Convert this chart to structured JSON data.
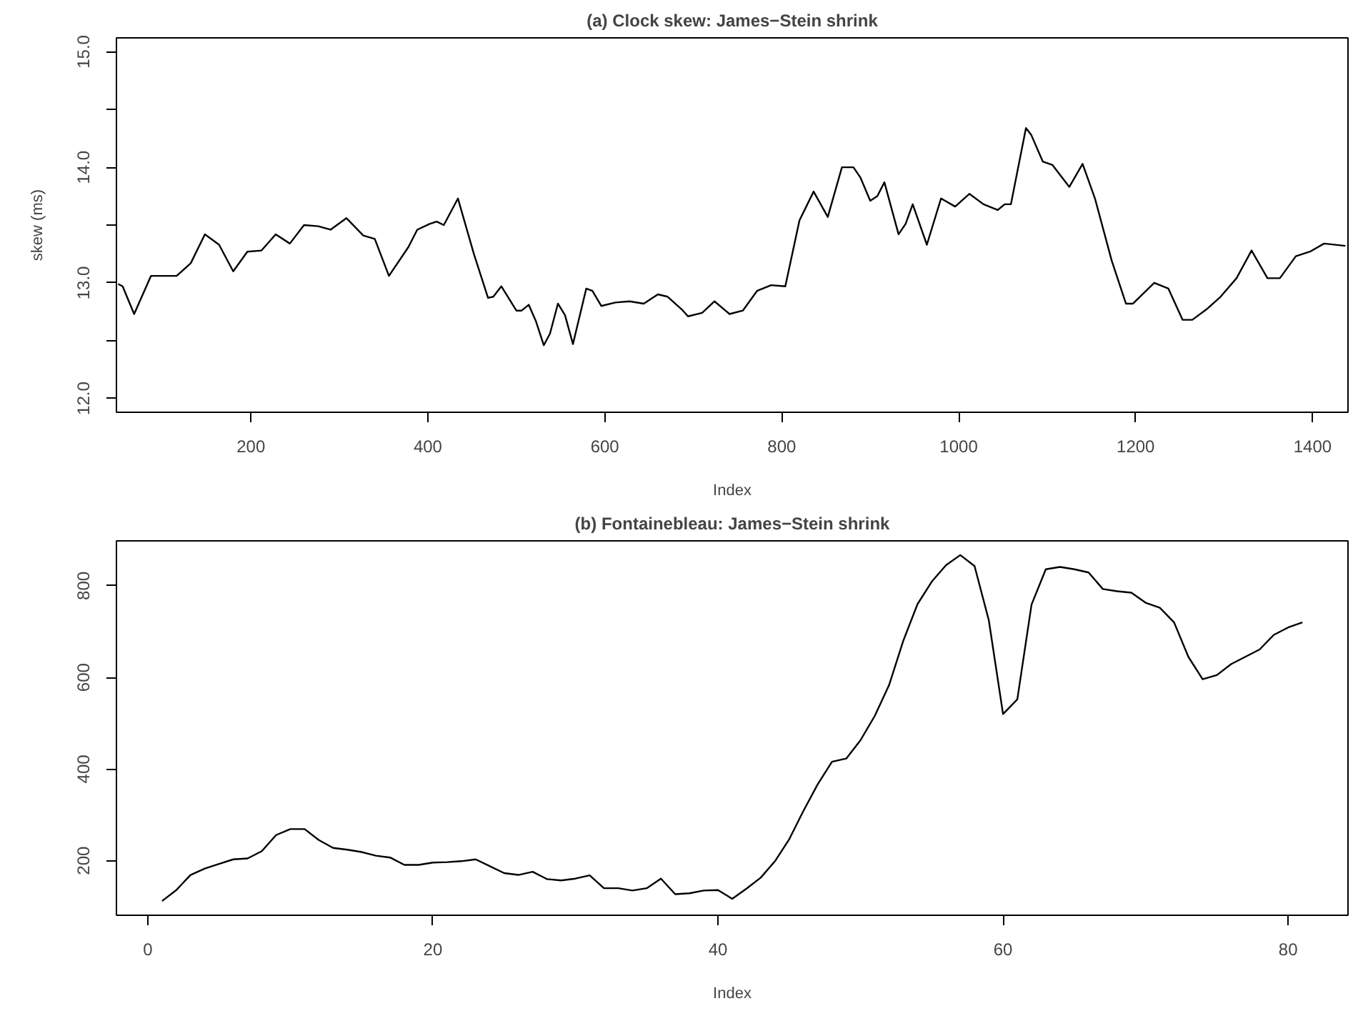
{
  "chart_data": [
    {
      "type": "line",
      "title": "(a) Clock skew: James−Stein shrink",
      "xlabel": "Index",
      "ylabel": "skew (ms)",
      "line_style": "solid",
      "grid": false,
      "xlim": [
        48,
        1440
      ],
      "ylim": [
        11.88,
        15.12
      ],
      "xticks": [
        200,
        400,
        600,
        800,
        1000,
        1200,
        1400
      ],
      "yticks": [
        {
          "value": 12.0,
          "label": "12.0"
        },
        {
          "value": 12.5,
          "label": null
        },
        {
          "value": 13.0,
          "label": "13.0"
        },
        {
          "value": 13.5,
          "label": null
        },
        {
          "value": 14.0,
          "label": "14.0"
        },
        {
          "value": 14.5,
          "label": null
        },
        {
          "value": 15.0,
          "label": "15.0"
        }
      ],
      "series": [
        {
          "color": "#000000",
          "x": [
            50,
            55,
            68,
            87,
            98,
            116,
            132,
            148,
            164,
            180,
            196,
            212,
            228,
            244,
            260,
            276,
            290,
            308,
            327,
            340,
            356,
            378,
            388,
            402,
            410,
            418,
            434,
            452,
            468,
            474,
            483,
            500,
            506,
            514,
            522,
            531,
            538,
            547,
            555,
            564,
            579,
            586,
            596,
            612,
            628,
            644,
            660,
            671,
            687,
            694,
            710,
            724,
            741,
            756,
            772,
            788,
            804,
            820,
            836,
            852,
            868,
            881,
            889,
            900,
            908,
            916,
            932,
            940,
            948,
            964,
            980,
            996,
            1012,
            1028,
            1044,
            1052,
            1059,
            1076,
            1082,
            1095,
            1106,
            1125,
            1140,
            1154,
            1173,
            1189,
            1197,
            1221,
            1237,
            1253,
            1264,
            1280,
            1296,
            1314,
            1331,
            1349,
            1363,
            1381,
            1397,
            1413,
            1437
          ],
          "values": [
            12.99,
            12.97,
            12.73,
            13.06,
            13.06,
            13.06,
            13.17,
            13.42,
            13.33,
            13.1,
            13.27,
            13.28,
            13.42,
            13.34,
            13.5,
            13.49,
            13.46,
            13.56,
            13.41,
            13.38,
            13.06,
            13.31,
            13.46,
            13.51,
            13.53,
            13.5,
            13.73,
            13.25,
            12.87,
            12.88,
            12.97,
            12.76,
            12.76,
            12.81,
            12.67,
            12.46,
            12.56,
            12.82,
            12.72,
            12.47,
            12.95,
            12.93,
            12.8,
            12.83,
            12.84,
            12.82,
            12.9,
            12.88,
            12.77,
            12.71,
            12.74,
            12.84,
            12.73,
            12.76,
            12.93,
            12.98,
            12.97,
            13.54,
            13.79,
            13.57,
            14.0,
            14.0,
            13.91,
            13.71,
            13.75,
            13.87,
            13.42,
            13.51,
            13.68,
            13.33,
            13.73,
            13.66,
            13.77,
            13.68,
            13.63,
            13.68,
            13.68,
            14.34,
            14.28,
            14.05,
            14.02,
            13.83,
            14.03,
            13.73,
            13.19,
            12.82,
            12.82,
            13.0,
            12.95,
            12.68,
            12.68,
            12.77,
            12.88,
            13.04,
            13.28,
            13.04,
            13.04,
            13.23,
            13.27,
            13.34,
            13.32
          ]
        }
      ]
    },
    {
      "type": "line",
      "title": "(b) Fontainebleau: James−Stein shrink",
      "xlabel": "Index",
      "line_style": "solid",
      "grid": false,
      "xlim": [
        -2.2,
        84.2
      ],
      "ylim": [
        81,
        898
      ],
      "xticks": [
        0,
        20,
        40,
        60,
        80
      ],
      "yticks": [
        200,
        400,
        600,
        800
      ],
      "series": [
        {
          "color": "#000000",
          "x": [
            1,
            2,
            3,
            4,
            5,
            6,
            7,
            8,
            9,
            10,
            11,
            12,
            13,
            14,
            15,
            16,
            17,
            18,
            19,
            20,
            21,
            22,
            23,
            24,
            25,
            26,
            27,
            28,
            29,
            30,
            31,
            32,
            33,
            34,
            35,
            36,
            37,
            38,
            39,
            40,
            41,
            42,
            43,
            44,
            45,
            46,
            47,
            48,
            49,
            50,
            51,
            52,
            53,
            54,
            55,
            56,
            57,
            58,
            59,
            60,
            61,
            62,
            63,
            64,
            65,
            66,
            67,
            68,
            69,
            70,
            71,
            72,
            73,
            74,
            75,
            76,
            77,
            78,
            79,
            80,
            81
          ],
          "values": [
            112,
            136,
            169,
            183,
            193,
            203,
            205,
            221,
            256,
            269,
            269,
            245,
            228,
            224,
            219,
            211,
            207,
            191,
            191,
            196,
            197,
            199,
            203,
            188,
            173,
            169,
            176,
            160,
            157,
            161,
            168,
            140,
            140,
            135,
            140,
            161,
            127,
            129,
            135,
            136,
            117,
            139,
            163,
            199,
            247,
            309,
            367,
            416,
            423,
            463,
            516,
            583,
            680,
            760,
            809,
            845,
            867,
            843,
            725,
            520,
            552,
            759,
            836,
            841,
            836,
            829,
            793,
            788,
            785,
            763,
            752,
            720,
            645,
            596,
            605,
            629,
            645,
            661,
            693,
            709,
            720
          ]
        }
      ]
    }
  ]
}
